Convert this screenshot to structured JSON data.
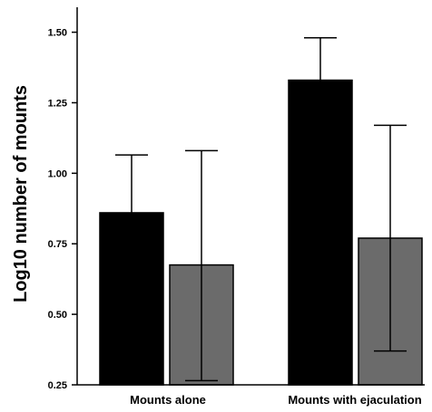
{
  "chart_data": {
    "type": "bar",
    "title": "",
    "xlabel": "",
    "ylabel": "Log10 number of mounts",
    "categories": [
      "Mounts alone",
      "Mounts with ejaculation"
    ],
    "series": [
      {
        "values": [
          0.86,
          1.33
        ],
        "error_upper": [
          1.065,
          1.48
        ],
        "error_lower": [
          0.86,
          1.33
        ],
        "color": "#000000"
      },
      {
        "values": [
          0.675,
          0.77
        ],
        "error_upper": [
          1.08,
          1.17
        ],
        "error_lower": [
          0.265,
          0.37
        ],
        "color": "#6b6b6b"
      }
    ],
    "ylim": [
      0.25,
      1.55
    ],
    "yticks": [
      0.25,
      0.5,
      0.75,
      1.0,
      1.25,
      1.5
    ],
    "ytick_labels": [
      "0.25",
      "0.50",
      "0.75",
      "1.00",
      "1.25",
      "1.50"
    ],
    "grid": false,
    "legend": "none"
  }
}
